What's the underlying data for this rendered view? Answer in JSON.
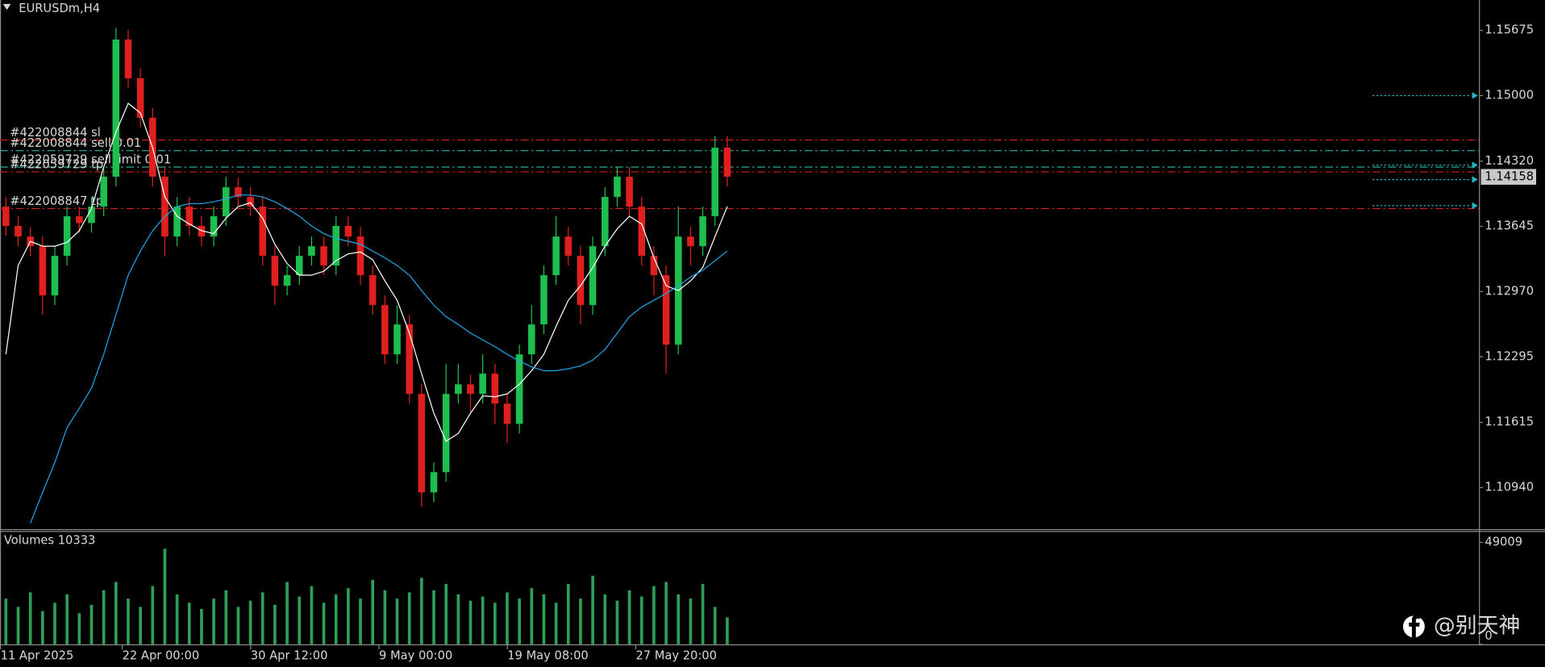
{
  "chart_data": [
    {
      "type": "candlestick",
      "title": "EURUSDm,H4",
      "open": [
        1.1385,
        1.1365,
        1.1354,
        1.1344,
        1.1293,
        1.1334,
        1.1375,
        1.1368,
        1.1385,
        1.1416,
        1.1558,
        1.1518,
        1.1477,
        1.1416,
        1.1354,
        1.1385,
        1.1365,
        1.1354,
        1.1375,
        1.1405,
        1.1395,
        1.1385,
        1.1334,
        1.1303,
        1.1314,
        1.1334,
        1.1344,
        1.1324,
        1.1365,
        1.1354,
        1.1314,
        1.1283,
        1.1232,
        1.1263,
        1.1191,
        1.1089,
        1.111,
        1.1191,
        1.1201,
        1.1191,
        1.1212,
        1.1181,
        1.116,
        1.1232,
        1.1263,
        1.1314,
        1.1354,
        1.1334,
        1.1283,
        1.1344,
        1.1395,
        1.1416,
        1.1385,
        1.1334,
        1.1314,
        1.1242,
        1.1354,
        1.1344,
        1.1375,
        1.1446
      ],
      "high": [
        1.1395,
        1.1375,
        1.1364,
        1.1354,
        1.1344,
        1.1385,
        1.1385,
        1.1395,
        1.1426,
        1.157,
        1.1568,
        1.1528,
        1.1487,
        1.1426,
        1.1395,
        1.1395,
        1.1375,
        1.1385,
        1.1416,
        1.1415,
        1.1405,
        1.1395,
        1.1344,
        1.1324,
        1.1344,
        1.1354,
        1.1354,
        1.1375,
        1.1375,
        1.1364,
        1.1324,
        1.1293,
        1.1283,
        1.1273,
        1.1201,
        1.112,
        1.1222,
        1.1222,
        1.1211,
        1.1232,
        1.1222,
        1.1191,
        1.1242,
        1.1283,
        1.1324,
        1.1375,
        1.1364,
        1.1344,
        1.1354,
        1.1405,
        1.1426,
        1.1426,
        1.1395,
        1.1344,
        1.1324,
        1.1385,
        1.1364,
        1.1385,
        1.1458,
        1.1458
      ],
      "low": [
        1.1355,
        1.1344,
        1.1334,
        1.1273,
        1.1283,
        1.1324,
        1.1358,
        1.1358,
        1.1375,
        1.1406,
        1.1508,
        1.1467,
        1.1406,
        1.1334,
        1.1344,
        1.1355,
        1.1344,
        1.1344,
        1.1365,
        1.1385,
        1.1375,
        1.1324,
        1.1283,
        1.1293,
        1.1304,
        1.1324,
        1.1314,
        1.1314,
        1.1344,
        1.1304,
        1.1273,
        1.1222,
        1.1222,
        1.1181,
        1.1074,
        1.1079,
        1.11,
        1.1181,
        1.117,
        1.1181,
        1.116,
        1.114,
        1.115,
        1.1222,
        1.1253,
        1.1304,
        1.1324,
        1.1263,
        1.1273,
        1.1334,
        1.1385,
        1.1375,
        1.1324,
        1.1293,
        1.1212,
        1.1232,
        1.1324,
        1.1334,
        1.1365,
        1.1406
      ],
      "close": [
        1.1365,
        1.1354,
        1.1344,
        1.1293,
        1.1334,
        1.1375,
        1.1368,
        1.1385,
        1.1416,
        1.1558,
        1.1518,
        1.1477,
        1.1416,
        1.1354,
        1.1385,
        1.1365,
        1.1354,
        1.1375,
        1.1405,
        1.1395,
        1.1385,
        1.1334,
        1.1303,
        1.1314,
        1.1334,
        1.1344,
        1.1324,
        1.1365,
        1.1354,
        1.1314,
        1.1283,
        1.1232,
        1.1263,
        1.1191,
        1.1089,
        1.111,
        1.1191,
        1.1201,
        1.1191,
        1.1212,
        1.1181,
        1.116,
        1.1232,
        1.1263,
        1.1314,
        1.1354,
        1.1334,
        1.1283,
        1.1344,
        1.1395,
        1.1416,
        1.1385,
        1.1334,
        1.1314,
        1.1242,
        1.1354,
        1.1344,
        1.1375,
        1.1446,
        1.1416
      ],
      "up_color": "#1fbf4f",
      "down_color": "#e0201e",
      "series": [
        {
          "color": "#ffffff",
          "values": [
            1.1232,
            1.1324,
            1.1349,
            1.1344,
            1.1344,
            1.1348,
            1.136,
            1.1383,
            1.1426,
            1.1462,
            1.1492,
            1.1482,
            1.1446,
            1.1395,
            1.1375,
            1.1367,
            1.136,
            1.1357,
            1.1373,
            1.1385,
            1.1389,
            1.1373,
            1.1346,
            1.1326,
            1.1314,
            1.1314,
            1.1318,
            1.1329,
            1.1336,
            1.1338,
            1.133,
            1.1308,
            1.1288,
            1.1254,
            1.1212,
            1.1171,
            1.1142,
            1.115,
            1.1171,
            1.1189,
            1.1188,
            1.1191,
            1.1201,
            1.1215,
            1.1232,
            1.1261,
            1.1288,
            1.1303,
            1.1322,
            1.1344,
            1.1362,
            1.1375,
            1.1367,
            1.1332,
            1.1303,
            1.1298,
            1.1308,
            1.1322,
            1.1354,
            1.1385
          ]
        },
        {
          "color": "#1ea7e8",
          "values": [
            null,
            null,
            1.1057,
            1.1089,
            1.112,
            1.1156,
            1.1176,
            1.1197,
            1.1232,
            1.1273,
            1.1314,
            1.1339,
            1.136,
            1.1375,
            1.1385,
            1.1388,
            1.1388,
            1.139,
            1.1393,
            1.1397,
            1.1397,
            1.1395,
            1.139,
            1.1383,
            1.1375,
            1.1365,
            1.1357,
            1.1352,
            1.1349,
            1.1346,
            1.1339,
            1.1332,
            1.1324,
            1.1314,
            1.1298,
            1.1283,
            1.1271,
            1.1263,
            1.1254,
            1.1247,
            1.124,
            1.1232,
            1.1225,
            1.1219,
            1.1215,
            1.1215,
            1.1217,
            1.122,
            1.1226,
            1.1237,
            1.1254,
            1.1271,
            1.1281,
            1.1288,
            1.1295,
            1.1303,
            1.1312,
            1.1319,
            1.1329,
            1.1339
          ]
        }
      ],
      "ylim": [
        1.1051,
        1.1599
      ],
      "yticks": [
        1.15675,
        {
          "value": 1.15,
          "label": "1.15000"
        },
        {
          "value": 1.1432,
          "label": "1.14320"
        },
        1.13645,
        {
          "value": 1.1297,
          "label": "1.12970"
        },
        1.12295,
        1.11615,
        {
          "value": 1.1094,
          "label": "1.10940"
        }
      ],
      "xticks": [
        {
          "value": 0,
          "label": "11 Apr 2025"
        },
        {
          "value": 10,
          "label": "22 Apr 00:00"
        },
        {
          "value": 20.5,
          "label": "30 Apr 12:00"
        },
        {
          "value": 31,
          "label": "9 May 00:00"
        },
        {
          "value": 41.5,
          "label": "19 May 08:00"
        },
        {
          "value": 52,
          "label": "27 May 20:00"
        }
      ],
      "order_lines": [
        {
          "label": "#422008844 sl",
          "price": 1.1454,
          "color": "#d42020"
        },
        {
          "label": "#422008844 sell 0.01",
          "price": 1.1443,
          "color": "#2aa89a"
        },
        {
          "label": "#422059729 sell limit 0.01",
          "price": 1.1426,
          "color": "#2aa89a"
        },
        {
          "label": "#422059729 tp",
          "price": 1.1421,
          "color": "#d42020"
        },
        {
          "label": "#422008847 tp",
          "price": 1.1383,
          "color": "#d42020"
        }
      ],
      "markers": [
        1.15,
        1.1428,
        1.1413,
        1.1386
      ],
      "marker_color": "#2ab3c4",
      "current_price": 1.14158,
      "watermark": "@别天神"
    },
    {
      "type": "bar",
      "title": "Volumes 10333",
      "color": "#2f9e58",
      "values": [
        22000,
        18000,
        25000,
        16000,
        20000,
        24000,
        15000,
        19000,
        26000,
        30000,
        22000,
        18000,
        28000,
        46000,
        24000,
        20000,
        17000,
        22000,
        26000,
        18000,
        21000,
        25000,
        19000,
        30000,
        23000,
        28000,
        20000,
        24000,
        27000,
        22000,
        31000,
        26000,
        22000,
        25000,
        32000,
        26000,
        29000,
        24000,
        21000,
        23000,
        20000,
        25000,
        22000,
        27000,
        24000,
        20000,
        29000,
        22000,
        33000,
        24000,
        21000,
        26000,
        23000,
        28000,
        30000,
        24000,
        22000,
        29000,
        18000,
        13000
      ],
      "ylim": [
        0,
        54000
      ],
      "yticks": [
        0,
        49009
      ]
    }
  ]
}
